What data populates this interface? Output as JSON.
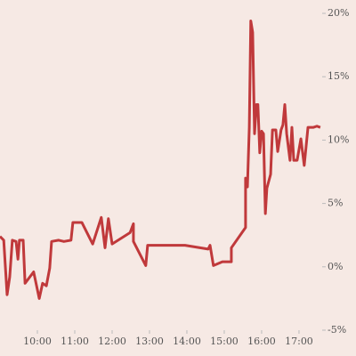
{
  "chart_data": {
    "type": "line",
    "color": "#c0393b",
    "x": [
      9,
      9.1,
      9.19,
      9.26,
      9.33,
      9.43,
      9.48,
      9.52,
      9.62,
      9.67,
      9.9,
      10.05,
      10.14,
      10.24,
      10.33,
      10.38,
      10.57,
      10.71,
      10.9,
      10.95,
      11.19,
      11.48,
      11.71,
      11.81,
      11.9,
      12,
      12.48,
      12.57,
      12.57,
      12.9,
      12.95,
      13.95,
      14.57,
      14.62,
      14.71,
      14.95,
      15.19,
      15.19,
      15.57,
      15.57,
      15.62,
      15.67,
      15.71,
      15.76,
      15.81,
      15.86,
      15.9,
      15.95,
      16,
      16.05,
      16.1,
      16.14,
      16.24,
      16.29,
      16.38,
      16.43,
      16.52,
      16.57,
      16.62,
      16.67,
      16.76,
      16.81,
      16.86,
      16.95,
      17.05,
      17.14,
      17.24,
      17.38,
      17.48,
      17.57
    ],
    "values": [
      2.4,
      2.1,
      -2.2,
      -0.8,
      2.1,
      2.0,
      0.6,
      2.1,
      2.1,
      -1.3,
      -0.4,
      -2.5,
      -1.3,
      -1.5,
      -0.1,
      2.0,
      2.1,
      2.0,
      2.1,
      3.5,
      3.5,
      1.8,
      3.9,
      1.5,
      3.8,
      1.8,
      2.7,
      3.4,
      2.0,
      0.1,
      1.7,
      1.7,
      1.4,
      1.7,
      0.1,
      0.4,
      0.4,
      1.5,
      3.1,
      7.0,
      6.3,
      11.0,
      19.4,
      18.5,
      10.5,
      12.8,
      12.8,
      9.0,
      10.7,
      10.5,
      4.2,
      6.2,
      7.3,
      10.8,
      10.8,
      9.1,
      10.8,
      11.2,
      12.8,
      10.5,
      8.4,
      11.0,
      8.4,
      8.4,
      10.1,
      8.0,
      11.0,
      11.0,
      11.1,
      11.0
    ],
    "xlim": [
      9,
      17.62
    ],
    "xticks": [
      {
        "value": 10,
        "label": "10:00"
      },
      {
        "value": 11,
        "label": "11:00"
      },
      {
        "value": 12,
        "label": "12:00"
      },
      {
        "value": 13,
        "label": "13:00"
      },
      {
        "value": 14,
        "label": "14:00"
      },
      {
        "value": 15,
        "label": "15:00"
      },
      {
        "value": 16,
        "label": "16:00"
      },
      {
        "value": 17,
        "label": "17:00"
      }
    ],
    "ylim": [
      -5,
      20
    ],
    "yticks": [
      {
        "value": -5,
        "label": "-5%"
      },
      {
        "value": 0,
        "label": "0%"
      },
      {
        "value": 5,
        "label": "5%"
      },
      {
        "value": 10,
        "label": "10%"
      },
      {
        "value": 15,
        "label": "15%"
      },
      {
        "value": 20,
        "label": "20%"
      }
    ]
  }
}
